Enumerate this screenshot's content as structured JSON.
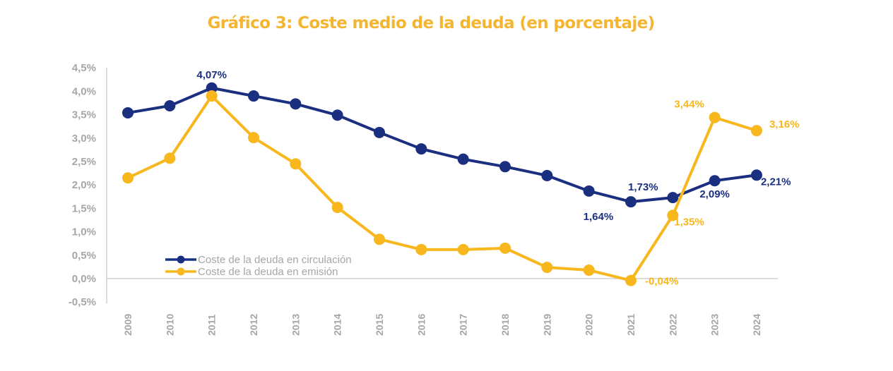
{
  "chart_data": {
    "type": "line",
    "title": "Gráfico 3: Coste medio de la deuda (en porcentaje)",
    "xlabel": "",
    "ylabel": "",
    "x": [
      "2009",
      "2010",
      "2011",
      "2012",
      "2013",
      "2014",
      "2015",
      "2016",
      "2017",
      "2018",
      "2019",
      "2020",
      "2021",
      "2022",
      "2023",
      "2024"
    ],
    "ylim": [
      -0.5,
      4.5
    ],
    "yticks": [
      -0.5,
      0.0,
      0.5,
      1.0,
      1.5,
      2.0,
      2.5,
      3.0,
      3.5,
      4.0,
      4.5
    ],
    "ytick_labels": [
      "-0,5%",
      "0,0%",
      "0,5%",
      "1,0%",
      "1,5%",
      "2,0%",
      "2,5%",
      "3,0%",
      "3,5%",
      "4,0%",
      "4,5%"
    ],
    "grid": false,
    "legend_position": "bottom-left",
    "series": [
      {
        "name": "Coste de la deuda en circulación",
        "color": "#1B2F80",
        "values": [
          3.54,
          3.69,
          4.07,
          3.9,
          3.73,
          3.49,
          3.12,
          2.77,
          2.55,
          2.39,
          2.2,
          1.87,
          1.64,
          1.73,
          2.09,
          2.21
        ],
        "data_labels": [
          {
            "index": 2,
            "text": "4,07%",
            "position": "above"
          },
          {
            "index": 12,
            "text": "1,64%",
            "position": "below-left"
          },
          {
            "index": 13,
            "text": "1,73%",
            "position": "above-left"
          },
          {
            "index": 14,
            "text": "2,09%",
            "position": "below"
          },
          {
            "index": 15,
            "text": "2,21%",
            "position": "right"
          }
        ]
      },
      {
        "name": "Coste de la deuda en emisión",
        "color": "#F7B71D",
        "values": [
          2.15,
          2.57,
          3.9,
          3.01,
          2.45,
          1.52,
          0.84,
          0.62,
          0.62,
          0.65,
          0.24,
          0.18,
          -0.04,
          1.35,
          3.44,
          3.16
        ],
        "data_labels": [
          {
            "index": 12,
            "text": "-0,04%",
            "position": "right"
          },
          {
            "index": 13,
            "text": "1,35%",
            "position": "right"
          },
          {
            "index": 14,
            "text": "3,44%",
            "position": "above-left"
          },
          {
            "index": 15,
            "text": "3,16%",
            "position": "right"
          }
        ]
      }
    ]
  }
}
